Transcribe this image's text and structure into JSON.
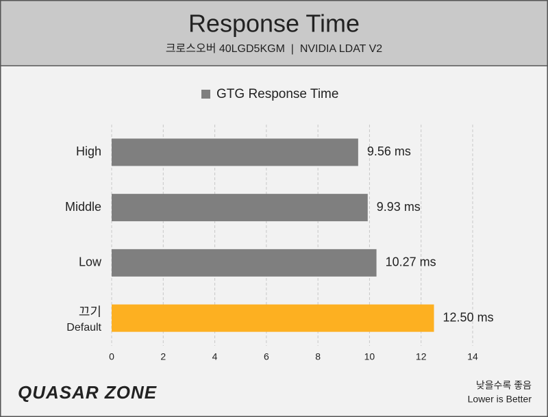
{
  "chart_data": {
    "type": "barh",
    "title": "Response Time",
    "subtitle": "크로스오버 40LGD5KGM  |  NVIDIA LDAT V2",
    "categories": [
      "High",
      "Middle",
      "Low",
      "끄기"
    ],
    "category_notes": [
      null,
      null,
      null,
      "Default"
    ],
    "series": [
      {
        "name": "GTG Response Time",
        "color": "#7f7f7f",
        "colors": [
          "#7f7f7f",
          "#7f7f7f",
          "#7f7f7f",
          "#fdb021"
        ],
        "values": [
          9.56,
          9.93,
          10.27,
          12.5
        ],
        "value_labels": [
          "9.56 ms",
          "9.93 ms",
          "10.27 ms",
          "12.50 ms"
        ]
      }
    ],
    "xlim": [
      0,
      14
    ],
    "xticks": [
      0,
      2,
      4,
      6,
      8,
      10,
      12,
      14
    ],
    "grid": true,
    "legend": "top",
    "logo": "QUASAR ZONE",
    "note": [
      "낮을수록 좋음",
      "Lower is Better"
    ]
  }
}
